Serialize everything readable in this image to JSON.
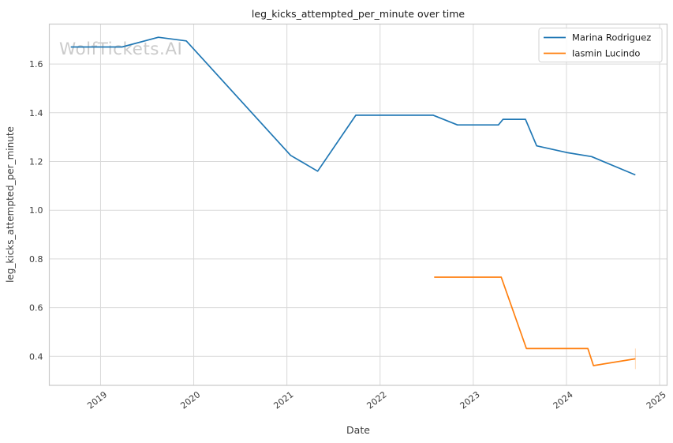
{
  "chart_data": {
    "type": "line",
    "title": "leg_kicks_attempted_per_minute over time",
    "xlabel": "Date",
    "ylabel": "leg_kicks_attempted_per_minute",
    "watermark": "WolfTickets.AI",
    "x_tick_values": [
      2019,
      2020,
      2021,
      2022,
      2023,
      2024,
      2025
    ],
    "x_tick_labels": [
      "2019",
      "2020",
      "2021",
      "2022",
      "2023",
      "2024",
      "2025"
    ],
    "y_tick_values": [
      0.4,
      0.6,
      0.8,
      1.0,
      1.2,
      1.4,
      1.6
    ],
    "y_tick_labels": [
      "0.4",
      "0.6",
      "0.8",
      "1.0",
      "1.2",
      "1.4",
      "1.6"
    ],
    "xlim": [
      2018.45,
      2025.08
    ],
    "ylim": [
      0.281,
      1.764
    ],
    "grid": true,
    "legend": {
      "position": "upper right",
      "entries": [
        "Marina Rodriguez",
        "Iasmin Lucindo"
      ]
    },
    "colors": {
      "background": "#ffffff",
      "grid": "#d9d9d9",
      "spine": "#c9c9c9",
      "tick_text": "#3b3b3b",
      "title_text": "#1a1a1a",
      "watermark": "#c6c6c6",
      "legend_border": "#d2d2d2"
    },
    "series": [
      {
        "name": "Marina Rodriguez",
        "color": "#1f77b4",
        "points": [
          [
            2018.68,
            1.67
          ],
          [
            2019.23,
            1.67
          ],
          [
            2019.62,
            1.71
          ],
          [
            2019.92,
            1.695
          ],
          [
            2021.04,
            1.225
          ],
          [
            2021.33,
            1.16
          ],
          [
            2021.74,
            1.39
          ],
          [
            2022.57,
            1.39
          ],
          [
            2022.83,
            1.35
          ],
          [
            2023.27,
            1.35
          ],
          [
            2023.32,
            1.373
          ],
          [
            2023.56,
            1.373
          ],
          [
            2023.68,
            1.264
          ],
          [
            2024.0,
            1.237
          ],
          [
            2024.27,
            1.22
          ],
          [
            2024.74,
            1.145
          ]
        ],
        "end_tick": false
      },
      {
        "name": "Iasmin Lucindo",
        "color": "#ff7f0e",
        "points": [
          [
            2022.58,
            0.725
          ],
          [
            2023.3,
            0.725
          ],
          [
            2023.57,
            0.432
          ],
          [
            2024.23,
            0.432
          ],
          [
            2024.29,
            0.362
          ],
          [
            2024.74,
            0.39
          ]
        ],
        "end_tick": true
      }
    ]
  }
}
